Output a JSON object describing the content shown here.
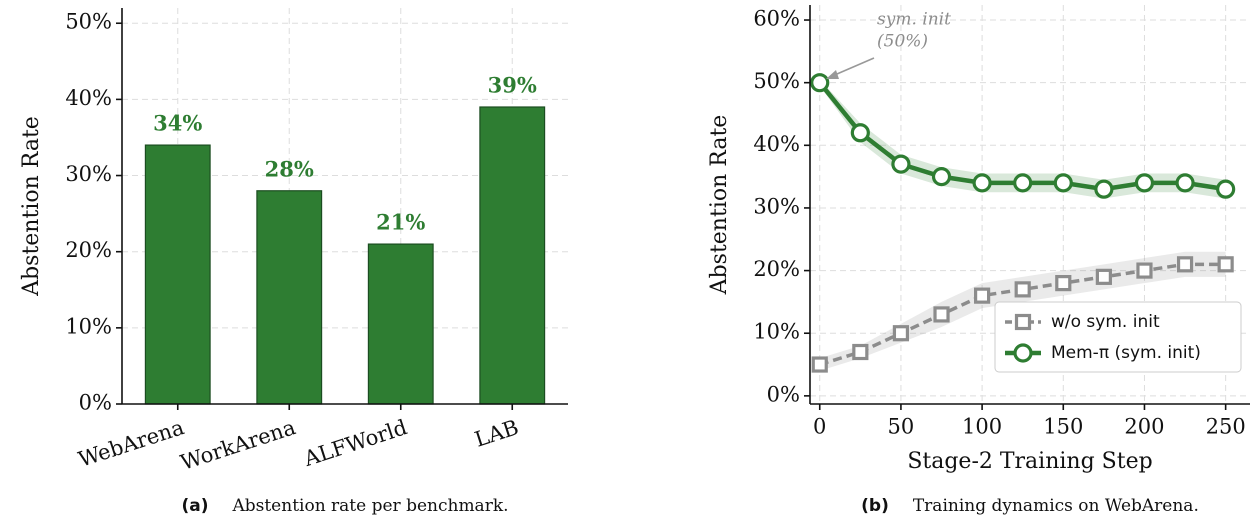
{
  "chart_data": [
    {
      "type": "bar",
      "caption_label": "(a)",
      "caption": "Abstention rate per benchmark.",
      "ylabel": "Abstention Rate",
      "categories": [
        "WebArena",
        "WorkArena",
        "ALFWorld",
        "LAB"
      ],
      "values": [
        34,
        28,
        21,
        39
      ],
      "value_labels": [
        "34%",
        "28%",
        "21%",
        "39%"
      ],
      "color": "#2e7d32",
      "ylim": [
        0,
        52
      ],
      "yticks": [
        {
          "value": 0,
          "label": "0%"
        },
        {
          "value": 10,
          "label": "10%"
        },
        {
          "value": 20,
          "label": "20%"
        },
        {
          "value": 30,
          "label": "30%"
        },
        {
          "value": 40,
          "label": "40%"
        },
        {
          "value": 50,
          "label": "50%"
        }
      ],
      "grid": true
    },
    {
      "type": "line",
      "caption_label": "(b)",
      "caption": "Training dynamics on WebArena.",
      "ylabel": "Abstention Rate",
      "xlabel": "Stage-2 Training Step",
      "annotation": [
        "sym. init",
        "(50%)"
      ],
      "x": [
        0,
        25,
        50,
        75,
        100,
        125,
        150,
        175,
        200,
        225,
        250
      ],
      "series": [
        {
          "name": "w/o sym. init",
          "color": "#8c8c8c",
          "linestyle": "dashed",
          "marker": "square",
          "values": [
            5,
            7,
            10,
            13,
            16,
            17,
            18,
            19,
            20,
            21,
            21
          ],
          "errors": [
            1,
            1,
            1.5,
            2,
            2,
            2,
            2,
            2,
            2,
            2,
            2
          ]
        },
        {
          "name": "Mem-π (sym. init)",
          "color": "#2e7d32",
          "linestyle": "solid",
          "marker": "circle",
          "values": [
            50,
            42,
            37,
            35,
            34,
            34,
            34,
            33,
            34,
            34,
            33
          ],
          "errors": [
            0.5,
            1.5,
            1.5,
            1.5,
            1.5,
            1.5,
            1.5,
            1.5,
            1.5,
            1.5,
            1.5
          ]
        }
      ],
      "xlim": [
        -6,
        265
      ],
      "xticks": [
        0,
        50,
        100,
        150,
        200,
        250
      ],
      "ylim": [
        -1.3,
        62.4
      ],
      "yticks": [
        {
          "value": 0,
          "label": "0%"
        },
        {
          "value": 10,
          "label": "10%"
        },
        {
          "value": 20,
          "label": "20%"
        },
        {
          "value": 30,
          "label": "30%"
        },
        {
          "value": 40,
          "label": "40%"
        },
        {
          "value": 50,
          "label": "50%"
        },
        {
          "value": 60,
          "label": "60%"
        }
      ],
      "grid": true,
      "legend": "lower right"
    }
  ]
}
